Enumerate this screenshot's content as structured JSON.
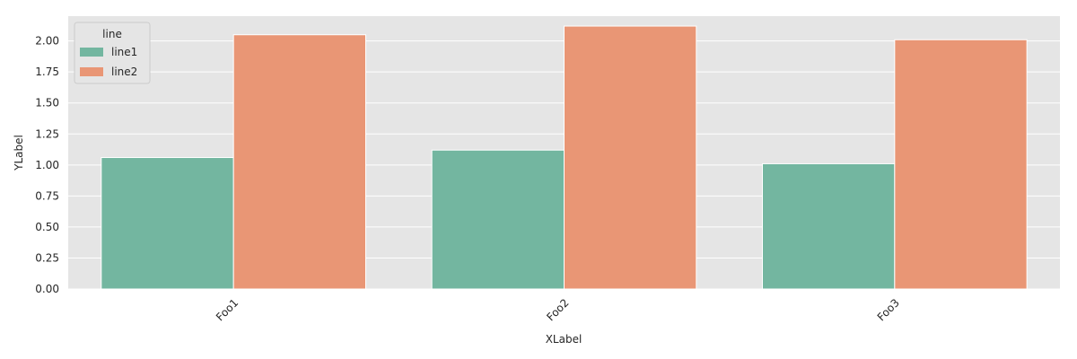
{
  "chart_data": {
    "type": "bar",
    "title": "",
    "xlabel": "XLabel",
    "ylabel": "YLabel",
    "categories": [
      "Foo1",
      "Foo2",
      "Foo3"
    ],
    "series": [
      {
        "name": "line1",
        "values": [
          1.06,
          1.12,
          1.01
        ]
      },
      {
        "name": "line2",
        "values": [
          2.05,
          2.12,
          2.01
        ]
      }
    ],
    "ylim": [
      0,
      2.2
    ],
    "yticks": [
      "0.00",
      "0.25",
      "0.50",
      "0.75",
      "1.00",
      "1.25",
      "1.50",
      "1.75",
      "2.00"
    ],
    "legend": {
      "title": "line",
      "placement": "top-left"
    },
    "grid": true,
    "colors": {
      "background": "#e5e5e5",
      "grid": "#ffffff",
      "series": [
        "#73b6a0",
        "#e99675"
      ]
    }
  }
}
